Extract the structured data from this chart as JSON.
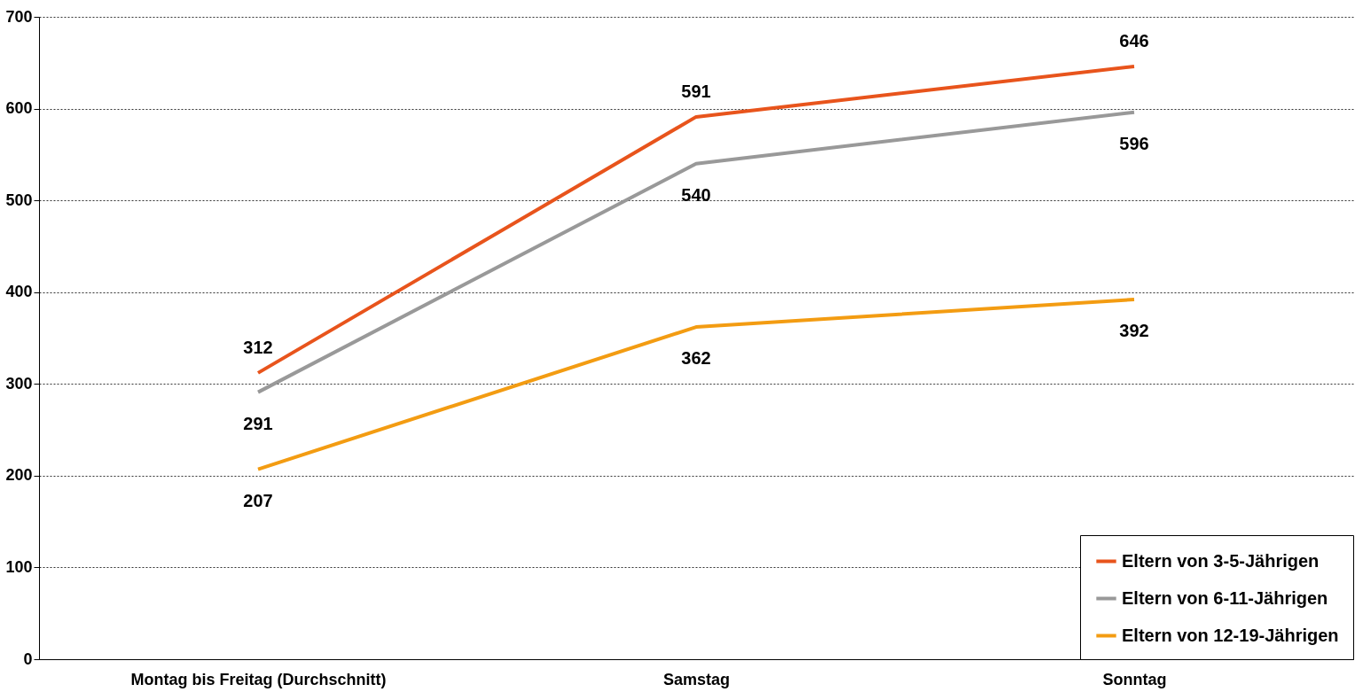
{
  "chart_data": {
    "type": "line",
    "categories": [
      "Montag bis Freitag (Durchschnitt)",
      "Samstag",
      "Sonntag"
    ],
    "series": [
      {
        "name": "Eltern von 3-5-Jährigen",
        "color": "#e8541c",
        "values": [
          312,
          591,
          646
        ]
      },
      {
        "name": "Eltern von 6-11-Jährigen",
        "color": "#999999",
        "values": [
          291,
          540,
          596
        ]
      },
      {
        "name": "Eltern von 12-19-Jährigen",
        "color": "#f39c12",
        "values": [
          207,
          362,
          392
        ]
      }
    ],
    "ylim": [
      0,
      700
    ],
    "yticks": [
      0,
      100,
      200,
      300,
      400,
      500,
      600,
      700
    ],
    "grid": "y",
    "legend": "bottom right",
    "data_labels": true,
    "marker": "none",
    "line_style": "solid"
  }
}
